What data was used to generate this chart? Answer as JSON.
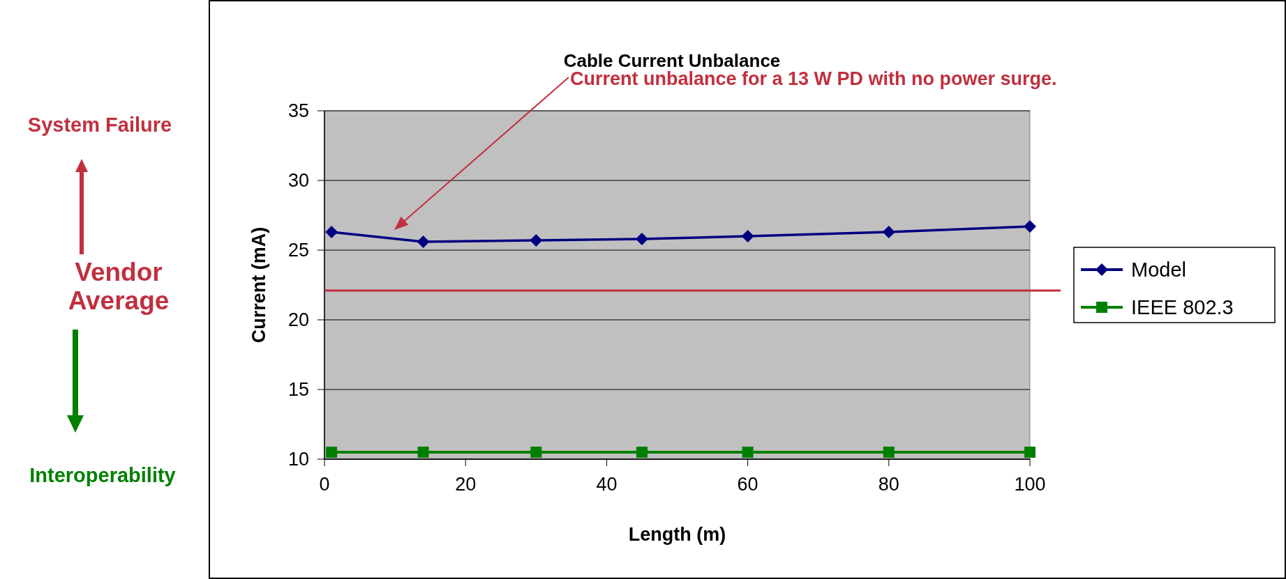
{
  "chart_data": {
    "type": "line",
    "title": "Cable Current Unbalance",
    "xlabel": "Length (m)",
    "ylabel": "Current (mA)",
    "x": [
      1,
      14,
      30,
      45,
      60,
      80,
      100
    ],
    "series": [
      {
        "name": "Model",
        "color": "#000080",
        "marker": "diamond",
        "values": [
          26.3,
          25.6,
          25.7,
          25.8,
          26.0,
          26.3,
          26.7
        ]
      },
      {
        "name": "IEEE 802.3",
        "color": "#008000",
        "marker": "square",
        "values": [
          10.5,
          10.5,
          10.5,
          10.5,
          10.5,
          10.5,
          10.5
        ]
      }
    ],
    "xlim": [
      0,
      100
    ],
    "xticks": [
      0,
      20,
      40,
      60,
      80,
      100
    ],
    "ylim": [
      10,
      35
    ],
    "yticks": [
      10,
      15,
      20,
      25,
      30,
      35
    ],
    "grid": "y",
    "legend": "right",
    "ref_lines": [
      {
        "axis": "y",
        "value": 22.1,
        "label": "Vendor Average",
        "color": "#c0303f"
      }
    ],
    "annotations": [
      "Current unbalance for a 13 W PD with no power surge.",
      "System Failure",
      "Interoperability"
    ]
  }
}
